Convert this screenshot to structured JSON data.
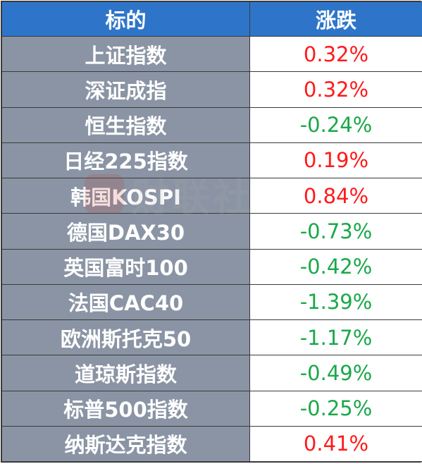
{
  "table": {
    "headers": {
      "name": "标的",
      "change": "涨跌"
    },
    "rows": [
      {
        "name": "上证指数",
        "change": "0.32%",
        "direction": "up"
      },
      {
        "name": "深证成指",
        "change": "0.32%",
        "direction": "up"
      },
      {
        "name": "恒生指数",
        "change": "-0.24%",
        "direction": "down"
      },
      {
        "name": "日经225指数",
        "change": "0.19%",
        "direction": "up"
      },
      {
        "name": "韩国KOSPI",
        "change": "0.84%",
        "direction": "up"
      },
      {
        "name": "德国DAX30",
        "change": "-0.73%",
        "direction": "down"
      },
      {
        "name": "英国富时100",
        "change": "-0.42%",
        "direction": "down"
      },
      {
        "name": "法国CAC40",
        "change": "-1.39%",
        "direction": "down"
      },
      {
        "name": "欧洲斯托克50",
        "change": "-1.17%",
        "direction": "down"
      },
      {
        "name": "道琼斯指数",
        "change": "-0.49%",
        "direction": "down"
      },
      {
        "name": "标普500指数",
        "change": "-0.25%",
        "direction": "down"
      },
      {
        "name": "纳斯达克指数",
        "change": "0.41%",
        "direction": "up"
      }
    ]
  },
  "watermark": {
    "text": "财联社"
  },
  "colors": {
    "header_bg": "#2e75c9",
    "name_bg": "#8a94a4",
    "up": "#ff1a1a",
    "down": "#1aa84a"
  }
}
